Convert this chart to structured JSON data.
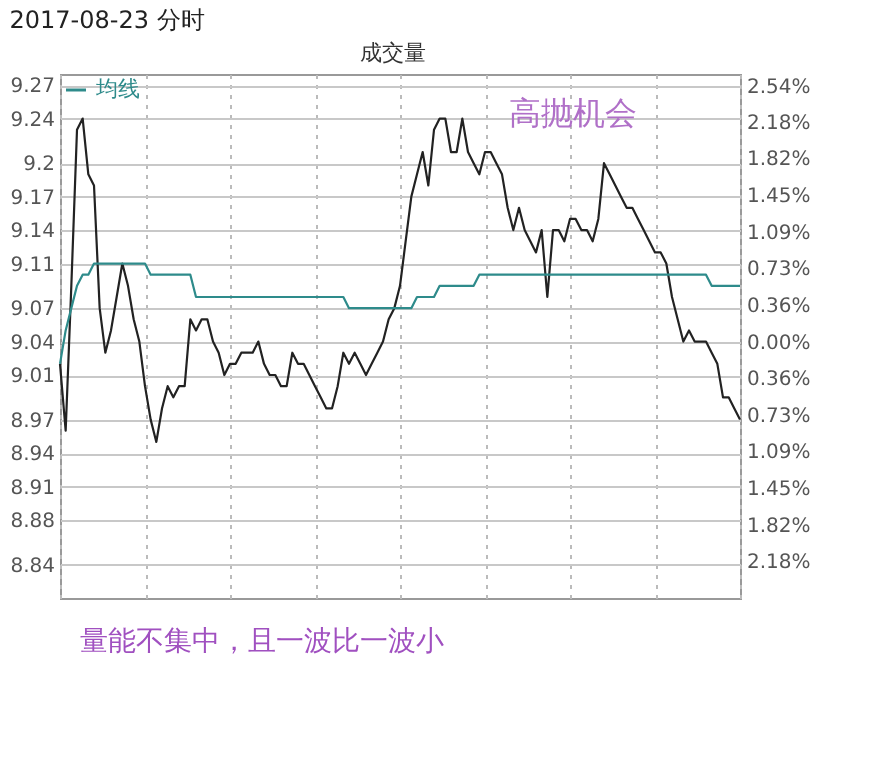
{
  "chart_data": {
    "type": "line",
    "title": "2017-08-23 分时",
    "annotations": [
      "成交量",
      "高抛机会",
      "量能不集中，且一波比一波小"
    ],
    "categories": [
      null,
      null,
      null,
      null,
      null,
      null,
      null,
      null,
      null,
      null,
      null,
      null,
      null,
      null,
      null,
      null,
      null,
      null,
      null,
      null,
      null,
      null,
      null,
      null,
      null,
      null,
      null,
      null,
      null,
      null,
      null,
      null,
      null,
      null,
      null,
      null,
      null,
      null,
      null,
      null,
      null,
      null,
      null,
      null,
      null,
      null,
      null,
      null,
      null,
      null,
      null,
      null,
      null,
      null,
      null,
      null,
      null,
      null,
      null,
      null,
      null,
      null,
      null,
      null,
      null,
      null,
      null,
      null,
      null,
      null,
      null,
      null,
      null,
      null,
      null,
      null,
      null,
      null,
      null,
      null,
      null,
      null,
      null,
      null,
      null,
      null,
      null,
      null,
      null,
      null,
      null,
      null,
      null,
      null,
      null,
      null,
      null,
      null,
      null,
      null,
      null,
      null,
      null,
      null,
      null,
      null,
      null,
      null,
      null,
      null,
      null,
      null,
      null,
      null,
      null,
      null,
      null,
      null,
      null,
      null,
      null
    ],
    "series": [
      {
        "color": "#222222",
        "values": [
          9.02,
          8.96,
          9.09,
          9.23,
          9.24,
          9.19,
          9.18,
          9.07,
          9.03,
          9.05,
          9.08,
          9.11,
          9.09,
          9.06,
          9.04,
          9.0,
          8.97,
          8.95,
          8.98,
          9.0,
          8.99,
          9.0,
          9.0,
          9.06,
          9.05,
          9.06,
          9.06,
          9.04,
          9.03,
          9.01,
          9.02,
          9.02,
          9.03,
          9.03,
          9.03,
          9.04,
          9.02,
          9.01,
          9.01,
          9.0,
          9.0,
          9.03,
          9.02,
          9.02,
          9.01,
          9.0,
          8.99,
          8.98,
          8.98,
          9.0,
          9.03,
          9.02,
          9.03,
          9.02,
          9.01,
          9.02,
          9.03,
          9.04,
          9.06,
          9.07,
          9.09,
          9.13,
          9.17,
          9.19,
          9.21,
          9.18,
          9.23,
          9.24,
          9.24,
          9.21,
          9.21,
          9.24,
          9.21,
          9.2,
          9.19,
          9.21,
          9.21,
          9.2,
          9.19,
          9.16,
          9.14,
          9.16,
          9.14,
          9.13,
          9.12,
          9.14,
          9.08,
          9.14,
          9.14,
          9.13,
          9.15,
          9.15,
          9.14,
          9.14,
          9.13,
          9.15,
          9.2,
          9.19,
          9.18,
          9.17,
          9.16,
          9.16,
          9.15,
          9.14,
          9.13,
          9.12,
          9.12,
          9.11,
          9.08,
          9.06,
          9.04,
          9.05,
          9.04,
          9.04,
          9.04,
          9.03,
          9.02,
          8.99,
          8.99,
          8.98,
          8.97
        ]
      },
      {
        "name": "均线",
        "color": "#2e8b8b",
        "values": [
          9.02,
          9.05,
          9.07,
          9.09,
          9.1,
          9.1,
          9.11,
          9.11,
          9.11,
          9.11,
          9.11,
          9.11,
          9.11,
          9.11,
          9.11,
          9.11,
          9.1,
          9.1,
          9.1,
          9.1,
          9.1,
          9.1,
          9.1,
          9.1,
          9.08,
          9.08,
          9.08,
          9.08,
          9.08,
          9.08,
          9.08,
          9.08,
          9.08,
          9.08,
          9.08,
          9.08,
          9.08,
          9.08,
          9.08,
          9.08,
          9.08,
          9.08,
          9.08,
          9.08,
          9.08,
          9.08,
          9.08,
          9.08,
          9.08,
          9.08,
          9.08,
          9.07,
          9.07,
          9.07,
          9.07,
          9.07,
          9.07,
          9.07,
          9.07,
          9.07,
          9.07,
          9.07,
          9.07,
          9.08,
          9.08,
          9.08,
          9.08,
          9.09,
          9.09,
          9.09,
          9.09,
          9.09,
          9.09,
          9.09,
          9.1,
          9.1,
          9.1,
          9.1,
          9.1,
          9.1,
          9.1,
          9.1,
          9.1,
          9.1,
          9.1,
          9.1,
          9.1,
          9.1,
          9.1,
          9.1,
          9.1,
          9.1,
          9.1,
          9.1,
          9.1,
          9.1,
          9.1,
          9.1,
          9.1,
          9.1,
          9.1,
          9.1,
          9.1,
          9.1,
          9.1,
          9.1,
          9.1,
          9.1,
          9.1,
          9.1,
          9.1,
          9.1,
          9.1,
          9.1,
          9.1,
          9.09,
          9.09,
          9.09,
          9.09,
          9.09,
          9.09
        ]
      }
    ],
    "ylim": [
      8.81,
      9.28
    ],
    "yticks": [
      8.84,
      8.88,
      8.91,
      8.94,
      8.97,
      9.01,
      9.04,
      9.07,
      9.11,
      9.14,
      9.17,
      9.2,
      9.24,
      9.27
    ],
    "y2lim": [
      -2.544,
      2.655
    ],
    "y2ticks": [
      {
        "value": -2.18,
        "label": "2.18%"
      },
      {
        "value": -1.82,
        "label": "1.82%"
      },
      {
        "value": -1.45,
        "label": "1.45%"
      },
      {
        "value": -1.09,
        "label": "1.09%"
      },
      {
        "value": -0.73,
        "label": "0.73%"
      },
      {
        "value": -0.36,
        "label": "0.36%"
      },
      {
        "value": 0,
        "label": "0.00%"
      },
      {
        "value": 0.36,
        "label": "0.36%"
      },
      {
        "value": 0.73,
        "label": "0.73%"
      },
      {
        "value": 1.09,
        "label": "1.09%"
      },
      {
        "value": 1.45,
        "label": "1.45%"
      },
      {
        "value": 1.82,
        "label": "1.82%"
      },
      {
        "value": 2.18,
        "label": "2.18%"
      },
      {
        "value": 2.54,
        "label": "2.54%"
      }
    ],
    "tick_labels": "y",
    "grid": true,
    "legend": "top left",
    "marker": "none",
    "line_style": "solid"
  }
}
